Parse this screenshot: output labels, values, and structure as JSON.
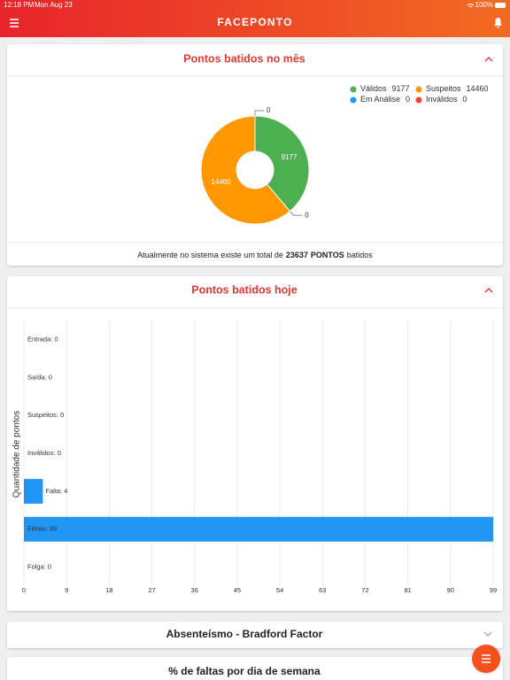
{
  "status_bar": {
    "time": "12:18 PM",
    "date": "Mon Aug 23",
    "battery": "100%"
  },
  "header": {
    "title": "FACEPONTO"
  },
  "chart_data": [
    {
      "type": "donut",
      "title": "Pontos batidos no mês",
      "categories": [
        "Válidos",
        "Em Análise",
        "Suspeitos",
        "Inválidos"
      ],
      "values": [
        9177,
        0,
        14460,
        0
      ],
      "colors": [
        "#4caf50",
        "#2196f3",
        "#ff9800",
        "#f44336"
      ],
      "footer": {
        "prefix": "Atualmente no sistema existe um total de",
        "total": 23637,
        "unit": "PONTOS",
        "suffix": "batidos"
      }
    },
    {
      "type": "hbar",
      "title": "Pontos batidos hoje",
      "values": [
        0,
        0,
        0,
        0,
        4,
        99,
        0
      ],
      "value_labels": [
        "Entrada: 0",
        "Saída: 0",
        "Suspeitos: 0",
        "Inválidos: 0",
        "Falta: 4",
        "Férias: 99",
        "Folga: 0"
      ],
      "color": "#2196f3",
      "ylabel": "Quantidade de pontos",
      "xlim": [
        0,
        99
      ],
      "xticks": [
        0,
        9,
        18,
        27,
        36,
        45,
        54,
        63,
        72,
        81,
        90,
        99
      ],
      "grid": true
    }
  ],
  "collapsed_cards": [
    {
      "title": "Absenteísmo - Bradford Factor"
    },
    {
      "title": "% de faltas por dia de semana"
    }
  ]
}
